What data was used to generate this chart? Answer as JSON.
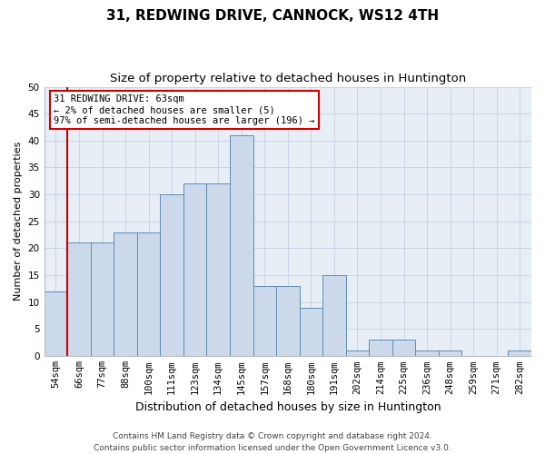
{
  "title": "31, REDWING DRIVE, CANNOCK, WS12 4TH",
  "subtitle": "Size of property relative to detached houses in Huntington",
  "xlabel": "Distribution of detached houses by size in Huntington",
  "ylabel": "Number of detached properties",
  "bar_labels": [
    "54sqm",
    "66sqm",
    "77sqm",
    "88sqm",
    "100sqm",
    "111sqm",
    "123sqm",
    "134sqm",
    "145sqm",
    "157sqm",
    "168sqm",
    "180sqm",
    "191sqm",
    "202sqm",
    "214sqm",
    "225sqm",
    "236sqm",
    "248sqm",
    "259sqm",
    "271sqm",
    "282sqm"
  ],
  "bar_values": [
    12,
    21,
    21,
    23,
    23,
    30,
    32,
    32,
    41,
    13,
    13,
    9,
    15,
    1,
    3,
    3,
    1,
    1,
    0,
    0,
    1
  ],
  "bar_color": "#ccd9ea",
  "bar_edge_color": "#5b8db8",
  "highlight_color": "#cc0000",
  "annotation_text": "31 REDWING DRIVE: 63sqm\n← 2% of detached houses are smaller (5)\n97% of semi-detached houses are larger (196) →",
  "annotation_box_color": "#ffffff",
  "annotation_box_edge": "#cc0000",
  "ylim": [
    0,
    50
  ],
  "yticks": [
    0,
    5,
    10,
    15,
    20,
    25,
    30,
    35,
    40,
    45,
    50
  ],
  "grid_color": "#c8d4e4",
  "background_color": "#e8eef6",
  "footnote": "Contains HM Land Registry data © Crown copyright and database right 2024.\nContains public sector information licensed under the Open Government Licence v3.0.",
  "title_fontsize": 11,
  "subtitle_fontsize": 9.5,
  "xlabel_fontsize": 9,
  "ylabel_fontsize": 8,
  "tick_fontsize": 7.5,
  "annotation_fontsize": 7.5,
  "footnote_fontsize": 6.5
}
